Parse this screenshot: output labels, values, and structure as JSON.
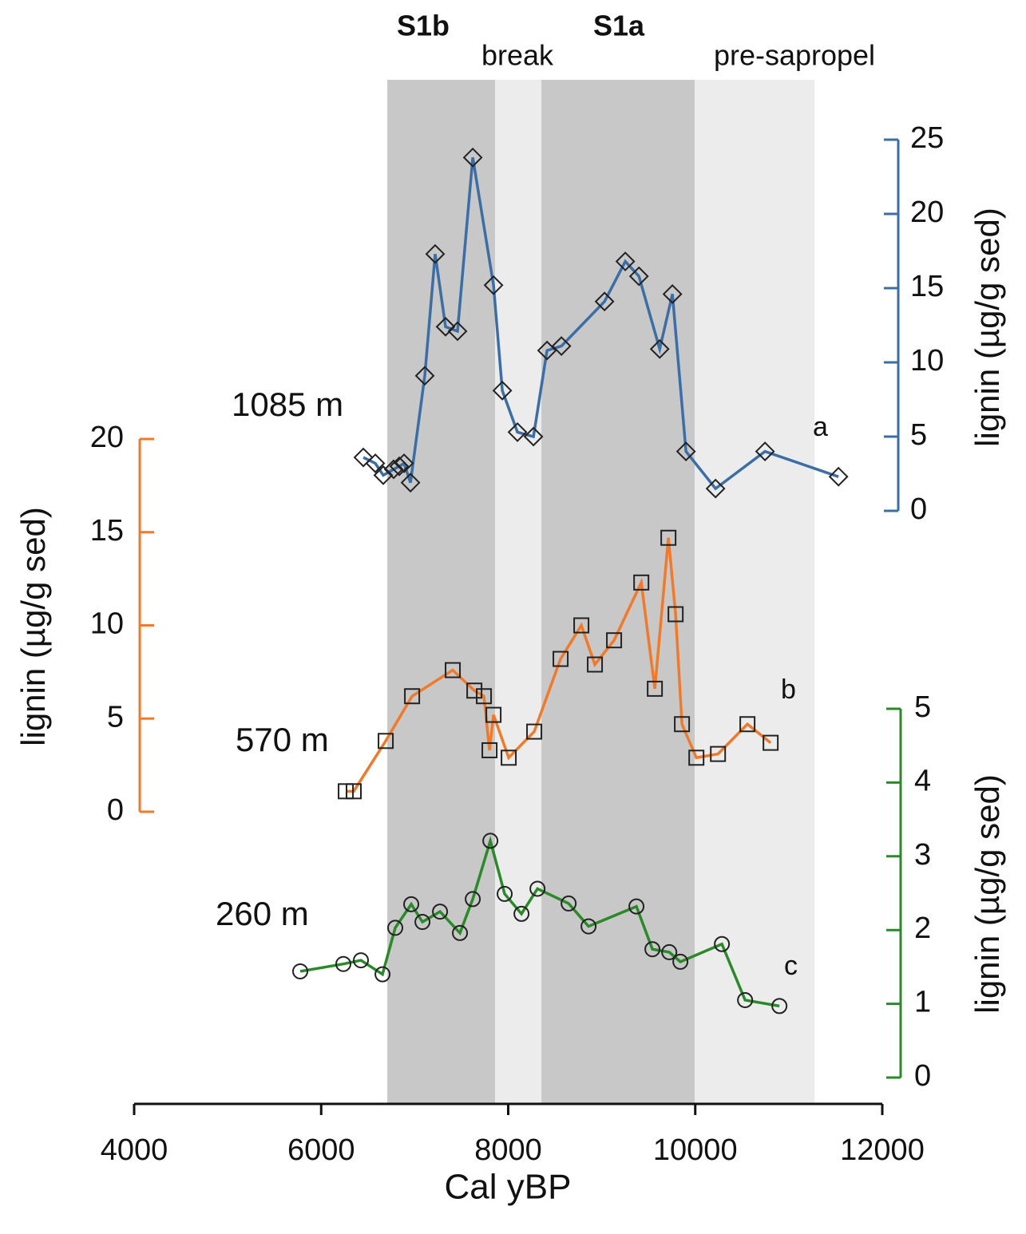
{
  "chart_data": {
    "type": "line",
    "xlabel": "Cal yBP",
    "xlim": [
      4000,
      12000
    ],
    "xticks": [
      4000,
      6000,
      8000,
      10000,
      12000
    ],
    "bands": [
      {
        "label": "S1b",
        "start": 6707,
        "end": 7860,
        "shade": "#c8c8c8",
        "bold": true
      },
      {
        "label": "break",
        "start": 7860,
        "end": 8355,
        "shade": "#ececec",
        "bold": false
      },
      {
        "label": "S1a",
        "start": 8355,
        "end": 9995,
        "shade": "#c8c8c8",
        "bold": true
      },
      {
        "label": "pre-sapropel",
        "start": 9995,
        "end": 11276,
        "shade": "#ececec",
        "bold": false
      }
    ],
    "series": [
      {
        "label": "1085 m",
        "tag": "a",
        "color": "#3c6ea6",
        "marker": "diamond",
        "side": "right",
        "ylabel": "lignin (µg/g sed)",
        "ylim": [
          0,
          25
        ],
        "yticks": [
          0,
          5,
          10,
          15,
          20,
          25
        ],
        "x": [
          6451,
          6579,
          6664,
          6775,
          6835,
          6886,
          6955,
          7108,
          7219,
          7330,
          7458,
          7621,
          7843,
          7937,
          8099,
          8270,
          8415,
          8569,
          9030,
          9252,
          9398,
          9620,
          9756,
          9901,
          10217,
          10746,
          11532
        ],
        "values": [
          3.6,
          3.2,
          2.4,
          2.8,
          3.0,
          3.2,
          1.9,
          9.1,
          17.3,
          12.4,
          12.1,
          23.8,
          15.2,
          8.1,
          5.3,
          5.0,
          10.8,
          11.1,
          14.1,
          16.8,
          15.8,
          10.9,
          14.6,
          4.0,
          1.5,
          4.0,
          2.3
        ]
      },
      {
        "label": "570 m",
        "tag": "b",
        "color": "#f07a2a",
        "marker": "square",
        "side": "left",
        "ylabel": "lignin (µg/g sed)",
        "ylim": [
          0,
          20
        ],
        "yticks": [
          0,
          5,
          10,
          15,
          20
        ],
        "x": [
          6263,
          6348,
          6690,
          6972,
          7407,
          7638,
          7740,
          7800,
          7843,
          8005,
          8278,
          8560,
          8782,
          8927,
          9132,
          9423,
          9568,
          9713,
          9790,
          9858,
          10012,
          10243,
          10558,
          10806
        ],
        "values": [
          1.1,
          1.1,
          3.8,
          6.2,
          7.6,
          6.5,
          6.2,
          3.3,
          5.2,
          2.9,
          4.3,
          8.2,
          10.0,
          7.9,
          9.2,
          12.3,
          6.6,
          14.7,
          10.6,
          4.7,
          2.9,
          3.1,
          4.7,
          3.7
        ]
      },
      {
        "label": "260 m",
        "tag": "c",
        "color": "#2a8a2a",
        "marker": "circle",
        "side": "right",
        "ylabel": "lignin (µg/g sed)",
        "ylim": [
          0,
          5
        ],
        "yticks": [
          0,
          1,
          2,
          3,
          4,
          5
        ],
        "x": [
          5776,
          6237,
          6425,
          6656,
          6792,
          6963,
          7083,
          7271,
          7484,
          7621,
          7809,
          7962,
          8142,
          8313,
          8646,
          8859,
          9371,
          9542,
          9722,
          9841,
          10285,
          10533,
          10900
        ],
        "values": [
          1.44,
          1.54,
          1.59,
          1.4,
          2.03,
          2.35,
          2.11,
          2.25,
          1.96,
          2.42,
          3.21,
          2.49,
          2.22,
          2.56,
          2.36,
          2.05,
          2.32,
          1.74,
          1.7,
          1.57,
          1.81,
          1.05,
          0.97
        ]
      }
    ]
  }
}
